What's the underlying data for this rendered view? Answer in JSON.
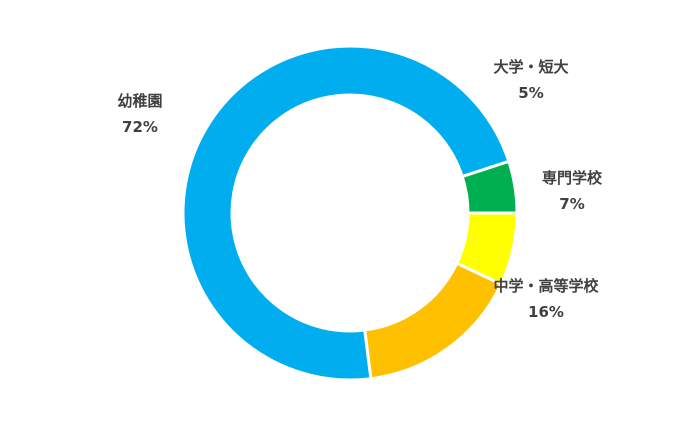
{
  "chart_data": {
    "type": "pie",
    "donut": true,
    "slices": [
      {
        "label": "幼稚園",
        "value": 72,
        "display": "72%",
        "color": "#00AEEF"
      },
      {
        "label": "大学・短大",
        "value": 5,
        "display": "5%",
        "color": "#00B050"
      },
      {
        "label": "専門学校",
        "value": 7,
        "display": "7%",
        "color": "#FFFF00"
      },
      {
        "label": "中学・高等学校",
        "value": 16,
        "display": "16%",
        "color": "#FFC000"
      }
    ]
  }
}
